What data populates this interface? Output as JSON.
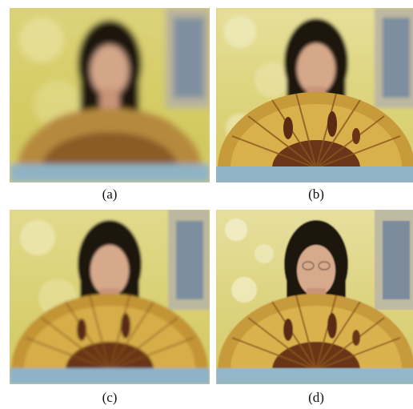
{
  "panels": [
    {
      "id": "a",
      "caption": "(a)"
    },
    {
      "id": "b",
      "caption": "(b)"
    },
    {
      "id": "c",
      "caption": "(c)"
    },
    {
      "id": "d",
      "caption": "(d)"
    }
  ],
  "colors": {
    "wallpaper_yellow": "#d9cf6a",
    "wallpaper_light": "#ece8b8",
    "fan_gold": "#c79a3a",
    "fan_dark": "#5a2a14",
    "shirt_red": "#a3241c",
    "hair": "#1c1410",
    "skin": "#d8a88a",
    "table_blue": "#8fb3c6",
    "frame_gray": "#b8b39a"
  }
}
